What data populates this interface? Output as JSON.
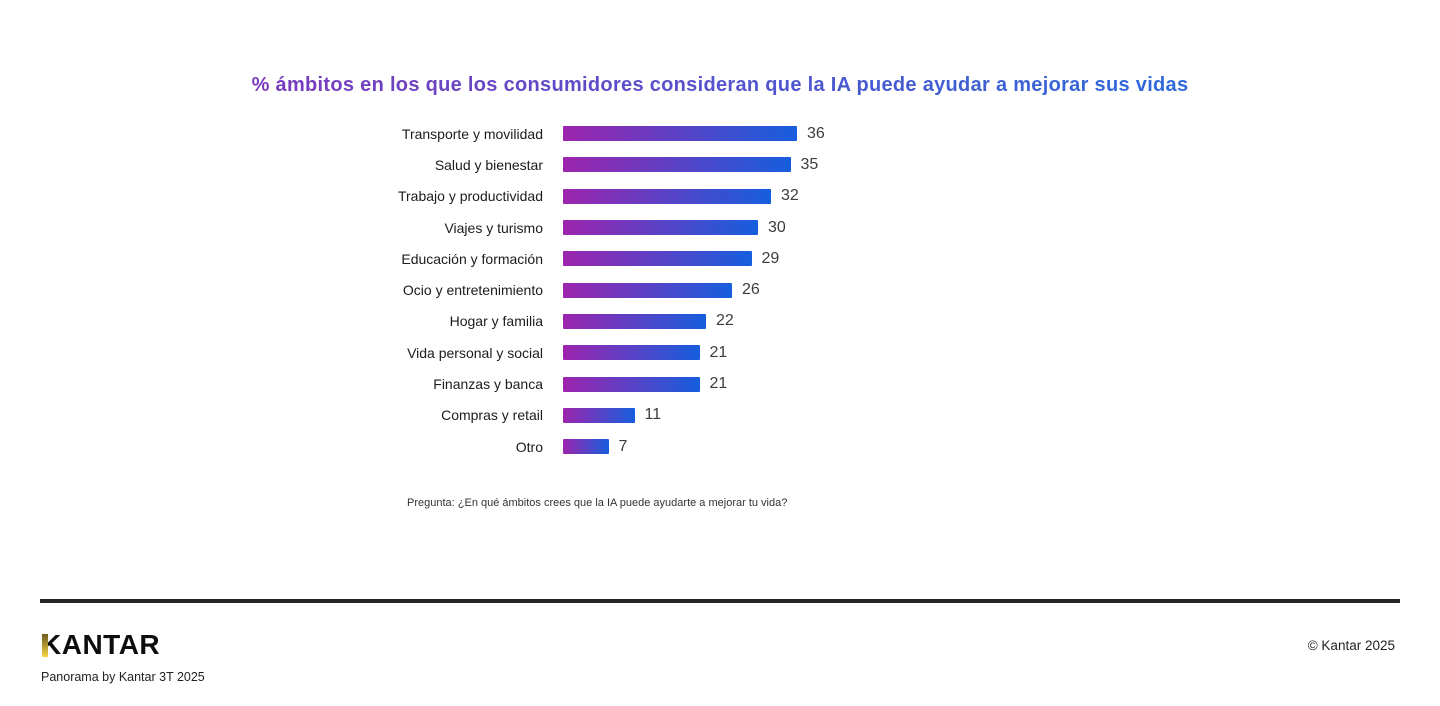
{
  "title": "% ámbitos en los que los consumidores consideran que la IA puede ayudar a mejorar sus vidas",
  "chart_data": {
    "type": "bar",
    "orientation": "horizontal",
    "title": "% ámbitos en los que los consumidores consideran que la IA puede ayudar a mejorar sus vidas",
    "categories": [
      "Transporte y movilidad",
      "Salud y bienestar",
      "Trabajo y productividad",
      "Viajes y turismo",
      "Educación y formación",
      "Ocio y entretenimiento",
      "Hogar y familia",
      "Vida personal y social",
      "Finanzas y banca",
      "Compras y retail",
      "Otro"
    ],
    "values": [
      36,
      35,
      32,
      30,
      29,
      26,
      22,
      21,
      21,
      11,
      7
    ],
    "xlim": [
      0,
      36
    ],
    "grid": false,
    "legend": false,
    "value_labels": "end-of-bar"
  },
  "colors": {
    "title_gradient_from": "#8F2DB5",
    "title_gradient_to": "#1877E3",
    "bar_gradient_from": "#9D24AD",
    "bar_gradient_to": "#155EDD",
    "logo_gold_from": "#6D5A1E",
    "logo_gold_to": "#F8D548",
    "rule": "#262626"
  },
  "footnote": "Pregunta: ¿En qué ámbitos crees que la IA puede ayudarte a mejorar tu vida?",
  "footer": {
    "logo_text": "KANTAR",
    "tagline": "Panorama by Kantar 3T 2025",
    "copyright": "© Kantar 2025"
  }
}
